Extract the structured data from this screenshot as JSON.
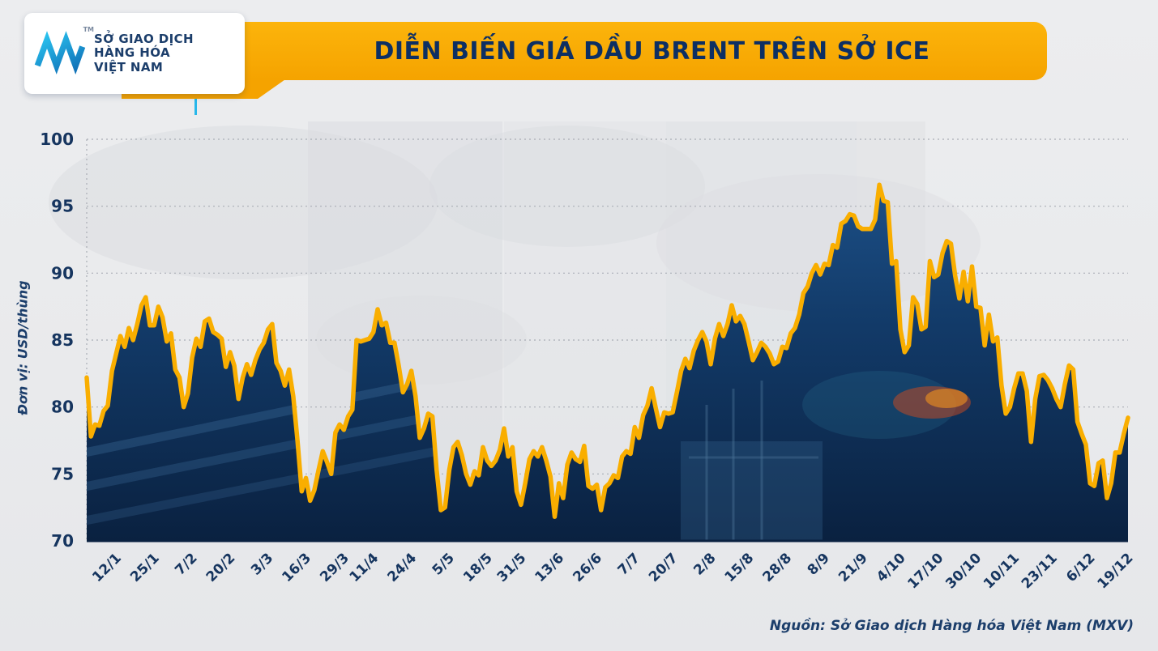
{
  "logo": {
    "line1": "SỞ GIAO DỊCH",
    "line2": "HÀNG HÓA",
    "line3": "VIỆT NAM",
    "tm": "TM"
  },
  "title": "DIỄN BIẾN GIÁ DẦU BRENT TRÊN SỞ ICE",
  "source": "Nguồn: Sở Giao dịch Hàng hóa Việt Nam (MXV)",
  "colors": {
    "banner": "#f5a300",
    "navy": "#16355f",
    "line": "#f9ae00",
    "fill_top": "#1c4f86",
    "fill_mid": "#123a68",
    "fill_bottom": "#0a2140",
    "grid": "#a9adb5"
  },
  "chart_data": {
    "type": "area",
    "title": "DIỄN BIẾN GIÁ DẦU BRENT TRÊN SỞ ICE",
    "ylabel": "Đơn vị: USD/thùng",
    "xlabel": "",
    "ylim": [
      70,
      100
    ],
    "y_ticks": [
      70,
      75,
      80,
      85,
      90,
      95,
      100
    ],
    "grid": true,
    "legend_position": "none",
    "x_tick_labels": [
      "12/1",
      "25/1",
      "7/2",
      "20/2",
      "3/3",
      "16/3",
      "29/3",
      "11/4",
      "24/4",
      "5/5",
      "18/5",
      "31/5",
      "13/6",
      "26/6",
      "7/7",
      "20/7",
      "2/8",
      "15/8",
      "28/8",
      "8/9",
      "21/9",
      "4/10",
      "17/10",
      "30/10",
      "10/11",
      "23/11",
      "6/12",
      "19/12"
    ],
    "x_tick_indices": [
      7,
      16,
      25,
      34,
      43,
      52,
      61,
      68,
      77,
      86,
      95,
      103,
      112,
      121,
      130,
      139,
      148,
      157,
      166,
      175,
      184,
      193,
      202,
      211,
      220,
      229,
      238,
      247
    ],
    "series": [
      {
        "name": "Giá dầu Brent (ICE)",
        "values": [
          82.2,
          77.8,
          78.7,
          78.6,
          79.7,
          80.1,
          82.7,
          84.0,
          85.3,
          84.5,
          85.9,
          85.0,
          86.2,
          87.6,
          88.2,
          86.1,
          86.1,
          87.5,
          86.7,
          84.9,
          85.5,
          82.8,
          82.2,
          80.0,
          81.0,
          83.7,
          85.1,
          84.5,
          86.4,
          86.6,
          85.6,
          85.4,
          85.1,
          83.0,
          84.1,
          83.1,
          80.6,
          82.2,
          83.2,
          82.4,
          83.5,
          84.3,
          84.8,
          85.8,
          86.2,
          83.3,
          82.7,
          81.6,
          82.8,
          80.8,
          77.5,
          73.7,
          74.7,
          73.0,
          73.8,
          75.3,
          76.7,
          75.9,
          75.0,
          78.1,
          78.7,
          78.3,
          79.3,
          79.8,
          85.0,
          84.9,
          85.0,
          85.1,
          85.6,
          87.3,
          86.1,
          86.3,
          84.8,
          84.8,
          83.1,
          81.1,
          81.7,
          82.7,
          80.8,
          77.7,
          78.4,
          79.5,
          79.3,
          75.3,
          72.3,
          72.5,
          75.3,
          77.0,
          77.4,
          76.4,
          75.0,
          74.2,
          75.2,
          74.9,
          77.0,
          76.0,
          75.6,
          76.0,
          76.8,
          78.4,
          76.3,
          77.0,
          73.7,
          72.7,
          74.3,
          76.1,
          76.7,
          76.3,
          77.0,
          76.0,
          74.8,
          71.8,
          74.3,
          73.2,
          75.7,
          76.6,
          76.1,
          75.9,
          77.1,
          74.1,
          73.9,
          74.2,
          72.3,
          74.0,
          74.3,
          74.9,
          74.7,
          76.3,
          76.7,
          76.5,
          78.5,
          77.7,
          79.4,
          80.1,
          81.4,
          79.9,
          78.5,
          79.6,
          79.5,
          79.6,
          81.1,
          82.7,
          83.6,
          82.9,
          84.2,
          85.0,
          85.6,
          84.9,
          83.2,
          85.1,
          86.2,
          85.3,
          86.2,
          87.6,
          86.4,
          86.8,
          86.2,
          84.9,
          83.5,
          84.1,
          84.8,
          84.5,
          84.0,
          83.2,
          83.4,
          84.5,
          84.4,
          85.5,
          85.9,
          86.9,
          88.5,
          89.0,
          90.0,
          90.6,
          89.9,
          90.7,
          90.6,
          92.1,
          91.9,
          93.7,
          93.9,
          94.4,
          94.3,
          93.5,
          93.3,
          93.3,
          93.3,
          94.0,
          96.6,
          95.4,
          95.3,
          90.7,
          90.9,
          85.8,
          84.1,
          84.6,
          88.2,
          87.7,
          85.8,
          86.0,
          90.9,
          89.7,
          89.9,
          91.5,
          92.4,
          92.2,
          89.8,
          88.1,
          90.1,
          87.9,
          90.5,
          87.5,
          87.4,
          84.6,
          86.9,
          84.9,
          85.2,
          81.6,
          79.5,
          80.0,
          81.4,
          82.5,
          82.5,
          81.2,
          77.4,
          80.6,
          82.3,
          82.4,
          82.0,
          81.4,
          80.6,
          80.0,
          81.7,
          83.1,
          82.8,
          78.9,
          78.0,
          77.2,
          74.3,
          74.1,
          75.8,
          76.0,
          73.2,
          74.3,
          76.6,
          76.6,
          78.0,
          79.2
        ]
      }
    ]
  }
}
